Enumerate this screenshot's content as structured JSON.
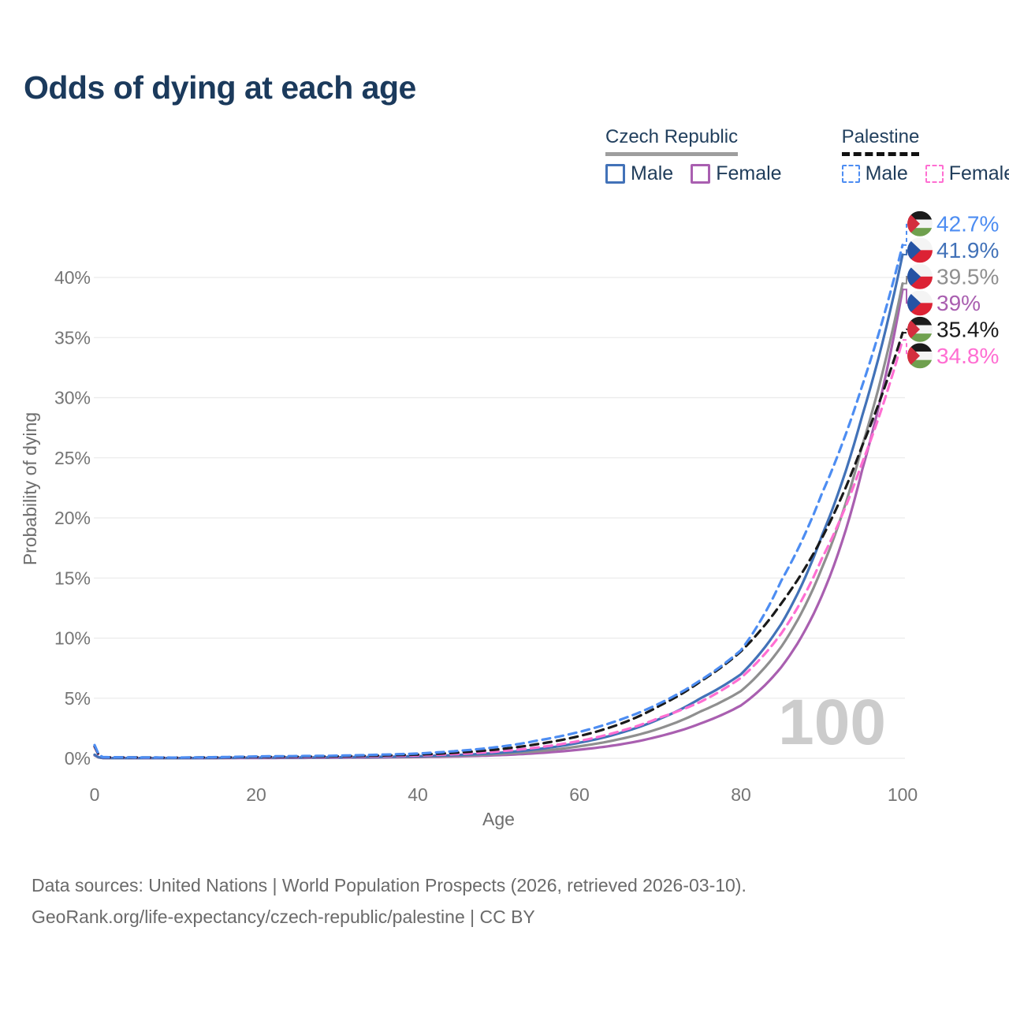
{
  "title": "Odds of dying at each age",
  "legend": {
    "groups": [
      {
        "id": "czech",
        "label": "Czech Republic",
        "underline": "solid",
        "underline_color": "#9e9e9e",
        "items": [
          {
            "series": "cz_m",
            "label": "Male"
          },
          {
            "series": "cz_f",
            "label": "Female"
          }
        ]
      },
      {
        "id": "palestine",
        "label": "Palestine",
        "underline": "dashed",
        "underline_color": "#111111",
        "items": [
          {
            "series": "ps_m",
            "label": "Male"
          },
          {
            "series": "ps_f",
            "label": "Female"
          }
        ]
      }
    ]
  },
  "chart_data": {
    "type": "line",
    "title": "Odds of dying at each age",
    "xlabel": "Age",
    "ylabel": "Probability of dying",
    "xlim": [
      0,
      100
    ],
    "ylim_pct": [
      0,
      44
    ],
    "grid": "horizontal",
    "gridline_color": "#ebebeb",
    "axis_text_color": "#757575",
    "watermark": "100",
    "watermark_color": "#cccccc",
    "xticks": [
      {
        "v": 0,
        "label": "0"
      },
      {
        "v": 20,
        "label": "20"
      },
      {
        "v": 40,
        "label": "40"
      },
      {
        "v": 60,
        "label": "60"
      },
      {
        "v": 80,
        "label": "80"
      },
      {
        "v": 100,
        "label": "100"
      }
    ],
    "yticks": [
      {
        "v": 0,
        "label": "0%"
      },
      {
        "v": 5,
        "label": "5%"
      },
      {
        "v": 10,
        "label": "10%"
      },
      {
        "v": 15,
        "label": "15%"
      },
      {
        "v": 20,
        "label": "20%"
      },
      {
        "v": 25,
        "label": "25%"
      },
      {
        "v": 30,
        "label": "30%"
      },
      {
        "v": 35,
        "label": "35%"
      },
      {
        "v": 40,
        "label": "40%"
      }
    ],
    "series": [
      {
        "id": "cz_f",
        "name": "Czech Republic — Female",
        "color": "#a95fb0",
        "dash": "solid",
        "flag": "czech",
        "end_label": "39%",
        "points": [
          [
            0,
            0.25
          ],
          [
            1,
            0.02
          ],
          [
            10,
            0.01
          ],
          [
            20,
            0.025
          ],
          [
            30,
            0.045
          ],
          [
            40,
            0.1
          ],
          [
            45,
            0.16
          ],
          [
            50,
            0.26
          ],
          [
            55,
            0.44
          ],
          [
            60,
            0.72
          ],
          [
            65,
            1.15
          ],
          [
            70,
            1.85
          ],
          [
            75,
            2.9
          ],
          [
            80,
            4.4
          ],
          [
            85,
            7.6
          ],
          [
            90,
            13.5
          ],
          [
            95,
            24.0
          ],
          [
            100,
            39.0
          ]
        ]
      },
      {
        "id": "cz_t",
        "name": "Czech Republic — Both sexes",
        "color": "#8f8f8f",
        "dash": "solid",
        "flag": "czech",
        "end_label": "39.5%",
        "points": [
          [
            0,
            0.28
          ],
          [
            1,
            0.025
          ],
          [
            10,
            0.015
          ],
          [
            20,
            0.045
          ],
          [
            30,
            0.07
          ],
          [
            40,
            0.14
          ],
          [
            45,
            0.22
          ],
          [
            50,
            0.36
          ],
          [
            55,
            0.6
          ],
          [
            60,
            1.0
          ],
          [
            65,
            1.6
          ],
          [
            70,
            2.5
          ],
          [
            75,
            3.9
          ],
          [
            80,
            5.6
          ],
          [
            85,
            9.3
          ],
          [
            90,
            15.8
          ],
          [
            95,
            26.0
          ],
          [
            100,
            39.5
          ]
        ]
      },
      {
        "id": "cz_m",
        "name": "Czech Republic — Male",
        "color": "#4272b8",
        "dash": "solid",
        "flag": "czech",
        "end_label": "41.9%",
        "points": [
          [
            0,
            0.3
          ],
          [
            1,
            0.03
          ],
          [
            10,
            0.02
          ],
          [
            20,
            0.06
          ],
          [
            30,
            0.09
          ],
          [
            40,
            0.18
          ],
          [
            45,
            0.28
          ],
          [
            50,
            0.45
          ],
          [
            55,
            0.78
          ],
          [
            60,
            1.3
          ],
          [
            65,
            2.1
          ],
          [
            70,
            3.3
          ],
          [
            75,
            5.0
          ],
          [
            80,
            7.0
          ],
          [
            85,
            11.2
          ],
          [
            90,
            18.5
          ],
          [
            95,
            28.5
          ],
          [
            100,
            41.9
          ]
        ]
      },
      {
        "id": "ps_f",
        "name": "Palestine — Female",
        "color": "#ff6ed2",
        "dash": "dashed",
        "flag": "palestine",
        "end_label": "34.8%",
        "points": [
          [
            0,
            0.95
          ],
          [
            1,
            0.08
          ],
          [
            10,
            0.05
          ],
          [
            20,
            0.09
          ],
          [
            30,
            0.13
          ],
          [
            40,
            0.24
          ],
          [
            45,
            0.36
          ],
          [
            50,
            0.58
          ],
          [
            55,
            0.92
          ],
          [
            60,
            1.45
          ],
          [
            65,
            2.25
          ],
          [
            70,
            3.4
          ],
          [
            75,
            4.7
          ],
          [
            80,
            6.7
          ],
          [
            85,
            10.4
          ],
          [
            90,
            16.6
          ],
          [
            95,
            24.6
          ],
          [
            100,
            34.8
          ]
        ]
      },
      {
        "id": "ps_t",
        "name": "Palestine — Both sexes",
        "color": "#1a1a1a",
        "dash": "dashed",
        "flag": "palestine",
        "end_label": "35.4%",
        "points": [
          [
            0,
            1.0
          ],
          [
            1,
            0.09
          ],
          [
            10,
            0.055
          ],
          [
            20,
            0.12
          ],
          [
            30,
            0.17
          ],
          [
            40,
            0.31
          ],
          [
            45,
            0.48
          ],
          [
            50,
            0.75
          ],
          [
            55,
            1.2
          ],
          [
            60,
            1.85
          ],
          [
            65,
            2.85
          ],
          [
            70,
            4.4
          ],
          [
            75,
            6.4
          ],
          [
            80,
            8.9
          ],
          [
            85,
            12.9
          ],
          [
            90,
            18.3
          ],
          [
            95,
            26.0
          ],
          [
            100,
            35.4
          ]
        ]
      },
      {
        "id": "ps_m",
        "name": "Palestine — Male",
        "color": "#4d8df2",
        "dash": "dashed",
        "flag": "palestine",
        "end_label": "42.7%",
        "points": [
          [
            0,
            1.1
          ],
          [
            1,
            0.1
          ],
          [
            10,
            0.06
          ],
          [
            20,
            0.16
          ],
          [
            30,
            0.22
          ],
          [
            40,
            0.4
          ],
          [
            45,
            0.62
          ],
          [
            50,
            0.95
          ],
          [
            55,
            1.5
          ],
          [
            60,
            2.2
          ],
          [
            65,
            3.2
          ],
          [
            70,
            4.6
          ],
          [
            75,
            6.5
          ],
          [
            80,
            9.0
          ],
          [
            85,
            14.8
          ],
          [
            90,
            22.0
          ],
          [
            95,
            31.0
          ],
          [
            100,
            42.7
          ]
        ]
      }
    ],
    "legend_position": "top-right"
  },
  "flags": {
    "czech": {
      "blue": "#2553a4",
      "red": "#dc2234",
      "white": "#f4f4f4"
    },
    "palestine": {
      "black": "#1b1b1b",
      "white": "#f4f4f4",
      "green": "#6fa04e",
      "red": "#d42e3e"
    }
  },
  "footer": {
    "line1": "Data sources: United Nations | World Population Prospects (2026, retrieved 2026-03-10).",
    "line2": "GeoRank.org/life-expectancy/czech-republic/palestine | CC BY"
  }
}
